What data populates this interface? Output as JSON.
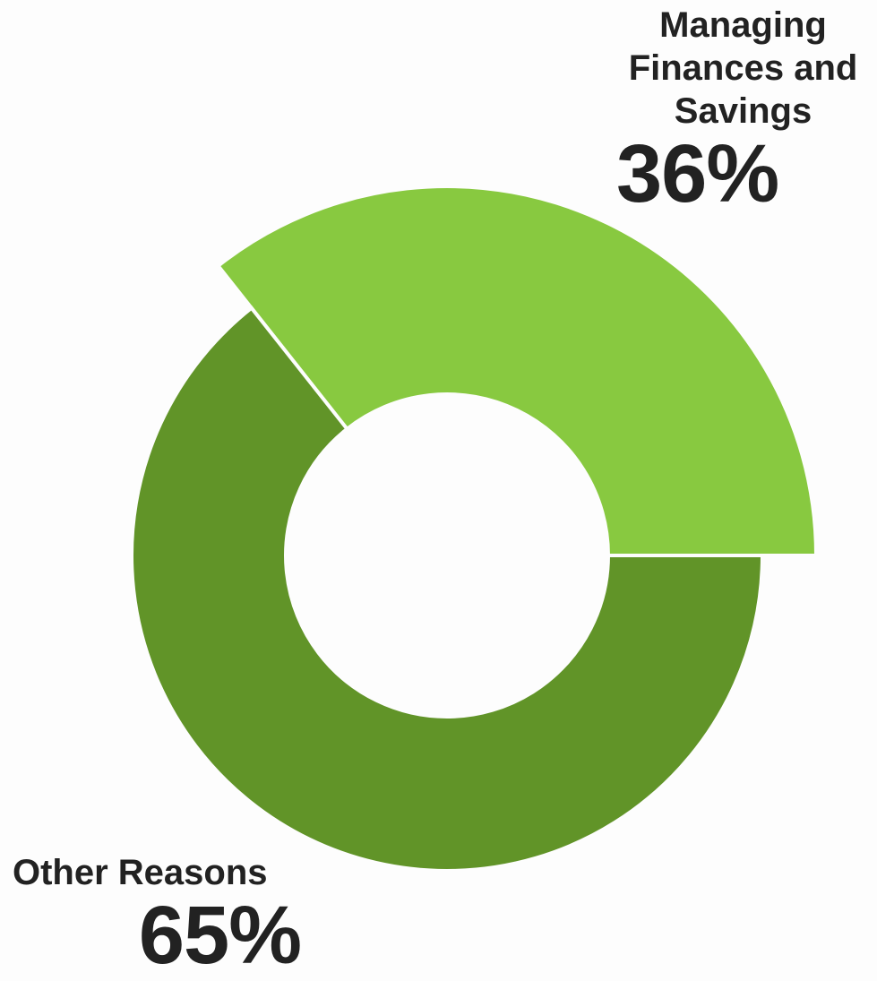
{
  "chart_data": {
    "type": "pie",
    "variant": "donut",
    "slices": [
      {
        "name": "Managing Finances and Savings",
        "value": 36,
        "value_label": "36%",
        "color": "#88c940",
        "exploded": true
      },
      {
        "name": "Other Reasons",
        "value": 65,
        "value_label": "65%",
        "color": "#619428",
        "exploded": false
      }
    ]
  },
  "labels": {
    "managing_name": "Managing Finances and Savings",
    "managing_value": "36%",
    "other_name": "Other Reasons",
    "other_value": "65%"
  },
  "colors": {
    "background": "#fdfdfd",
    "light_green": "#88c940",
    "dark_green": "#619428",
    "text": "#222222"
  }
}
